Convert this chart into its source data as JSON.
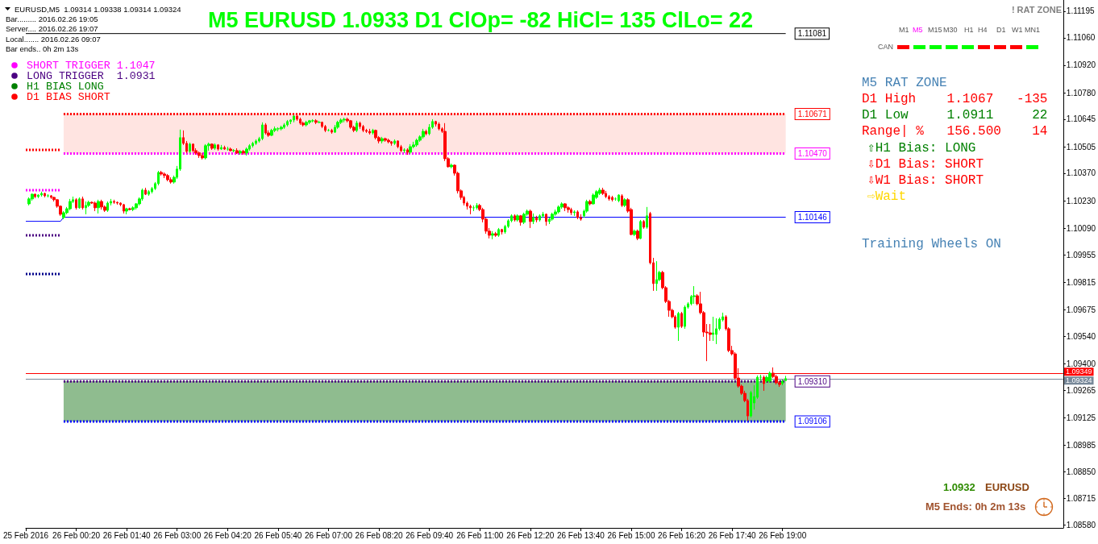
{
  "chart_data": {
    "type": "candlestick",
    "title": "M5 EURUSD 1.0933 D1 ClOp= -82 HiCl= 135 ClLo= 22",
    "x": [
      "2016-02-25T23:05",
      "2016-02-25T23:10",
      "2016-02-25T23:15",
      "2016-02-25T23:20",
      "2016-02-25T23:25",
      "2016-02-25T23:30",
      "2016-02-25T23:35",
      "2016-02-25T23:40",
      "2016-02-25T23:45",
      "2016-02-25T23:50",
      "2016-02-25T23:55",
      "2016-02-26T00:00",
      "2016-02-26T00:05",
      "2016-02-26T00:10",
      "2016-02-26T00:15",
      "2016-02-26T00:20",
      "2016-02-26T00:25",
      "2016-02-26T00:30",
      "2016-02-26T00:35",
      "2016-02-26T00:40",
      "2016-02-26T00:45",
      "2016-02-26T00:50",
      "2016-02-26T00:55",
      "2016-02-26T01:00",
      "2016-02-26T01:05",
      "2016-02-26T01:10",
      "2016-02-26T01:15",
      "2016-02-26T01:20",
      "2016-02-26T01:25",
      "2016-02-26T01:30",
      "2016-02-26T01:35",
      "2016-02-26T01:40",
      "2016-02-26T01:45",
      "2016-02-26T01:50",
      "2016-02-26T01:55",
      "2016-02-26T02:00",
      "2016-02-26T02:05",
      "2016-02-26T02:10",
      "2016-02-26T02:15",
      "2016-02-26T02:20",
      "2016-02-26T02:25",
      "2016-02-26T02:30",
      "2016-02-26T02:35",
      "2016-02-26T02:40",
      "2016-02-26T02:45",
      "2016-02-26T02:50",
      "2016-02-26T02:55",
      "2016-02-26T03:00",
      "2016-02-26T03:05",
      "2016-02-26T03:10",
      "2016-02-26T03:15",
      "2016-02-26T03:20",
      "2016-02-26T03:25",
      "2016-02-26T03:30",
      "2016-02-26T03:35",
      "2016-02-26T03:40",
      "2016-02-26T03:45",
      "2016-02-26T03:50",
      "2016-02-26T03:55",
      "2016-02-26T04:00",
      "2016-02-26T04:05",
      "2016-02-26T04:10",
      "2016-02-26T04:15",
      "2016-02-26T04:20",
      "2016-02-26T04:25",
      "2016-02-26T04:30",
      "2016-02-26T04:35",
      "2016-02-26T04:40",
      "2016-02-26T04:45",
      "2016-02-26T04:50",
      "2016-02-26T04:55",
      "2016-02-26T05:00",
      "2016-02-26T05:05",
      "2016-02-26T05:10",
      "2016-02-26T05:15",
      "2016-02-26T05:20",
      "2016-02-26T05:25",
      "2016-02-26T05:30",
      "2016-02-26T05:35",
      "2016-02-26T05:40",
      "2016-02-26T05:45",
      "2016-02-26T05:50",
      "2016-02-26T05:55",
      "2016-02-26T06:00",
      "2016-02-26T06:05",
      "2016-02-26T06:10",
      "2016-02-26T06:15",
      "2016-02-26T06:20",
      "2016-02-26T06:25",
      "2016-02-26T06:30",
      "2016-02-26T06:35",
      "2016-02-26T06:40",
      "2016-02-26T06:45",
      "2016-02-26T06:50",
      "2016-02-26T06:55",
      "2016-02-26T07:00",
      "2016-02-26T07:05",
      "2016-02-26T07:10",
      "2016-02-26T07:15",
      "2016-02-26T07:20",
      "2016-02-26T07:25",
      "2016-02-26T07:30",
      "2016-02-26T07:35",
      "2016-02-26T07:40",
      "2016-02-26T07:45",
      "2016-02-26T07:50",
      "2016-02-26T07:55",
      "2016-02-26T08:00",
      "2016-02-26T08:05",
      "2016-02-26T08:10",
      "2016-02-26T08:15",
      "2016-02-26T08:20",
      "2016-02-26T08:25",
      "2016-02-26T08:30",
      "2016-02-26T08:35",
      "2016-02-26T08:40",
      "2016-02-26T08:45",
      "2016-02-26T08:50",
      "2016-02-26T08:55",
      "2016-02-26T09:00",
      "2016-02-26T09:05",
      "2016-02-26T09:10",
      "2016-02-26T09:15",
      "2016-02-26T09:20",
      "2016-02-26T09:25",
      "2016-02-26T09:30",
      "2016-02-26T09:35",
      "2016-02-26T09:40",
      "2016-02-26T09:45",
      "2016-02-26T09:50",
      "2016-02-26T09:55",
      "2016-02-26T10:00",
      "2016-02-26T10:05",
      "2016-02-26T10:10",
      "2016-02-26T10:15",
      "2016-02-26T10:20",
      "2016-02-26T10:25",
      "2016-02-26T10:30",
      "2016-02-26T10:35",
      "2016-02-26T10:40",
      "2016-02-26T10:45",
      "2016-02-26T10:50",
      "2016-02-26T10:55",
      "2016-02-26T11:00",
      "2016-02-26T11:05",
      "2016-02-26T11:10",
      "2016-02-26T11:15",
      "2016-02-26T11:20",
      "2016-02-26T11:25",
      "2016-02-26T11:30",
      "2016-02-26T11:35",
      "2016-02-26T11:40",
      "2016-02-26T11:45",
      "2016-02-26T11:50",
      "2016-02-26T11:55",
      "2016-02-26T12:00",
      "2016-02-26T12:05",
      "2016-02-26T12:10",
      "2016-02-26T12:15",
      "2016-02-26T12:20",
      "2016-02-26T12:25",
      "2016-02-26T12:30",
      "2016-02-26T12:35",
      "2016-02-26T12:40",
      "2016-02-26T12:45",
      "2016-02-26T12:50",
      "2016-02-26T12:55",
      "2016-02-26T13:00",
      "2016-02-26T13:05",
      "2016-02-26T13:10",
      "2016-02-26T13:15",
      "2016-02-26T13:20",
      "2016-02-26T13:25",
      "2016-02-26T13:30",
      "2016-02-26T13:35",
      "2016-02-26T13:40",
      "2016-02-26T13:45",
      "2016-02-26T13:50",
      "2016-02-26T13:55",
      "2016-02-26T14:00",
      "2016-02-26T14:05",
      "2016-02-26T14:10",
      "2016-02-26T14:15",
      "2016-02-26T14:20",
      "2016-02-26T14:25",
      "2016-02-26T14:30",
      "2016-02-26T14:35",
      "2016-02-26T14:40",
      "2016-02-26T14:45",
      "2016-02-26T14:50",
      "2016-02-26T14:55",
      "2016-02-26T15:00",
      "2016-02-26T15:05",
      "2016-02-26T15:10",
      "2016-02-26T15:15",
      "2016-02-26T15:20",
      "2016-02-26T15:25",
      "2016-02-26T15:30",
      "2016-02-26T15:35",
      "2016-02-26T15:40",
      "2016-02-26T15:45",
      "2016-02-26T15:50",
      "2016-02-26T15:55",
      "2016-02-26T16:00",
      "2016-02-26T16:05",
      "2016-02-26T16:10",
      "2016-02-26T16:15",
      "2016-02-26T16:20",
      "2016-02-26T16:25",
      "2016-02-26T16:30",
      "2016-02-26T16:35",
      "2016-02-26T16:40",
      "2016-02-26T16:45",
      "2016-02-26T16:50",
      "2016-02-26T16:55",
      "2016-02-26T17:00",
      "2016-02-26T17:05",
      "2016-02-26T17:10",
      "2016-02-26T17:15",
      "2016-02-26T17:20",
      "2016-02-26T17:25",
      "2016-02-26T17:30",
      "2016-02-26T17:35",
      "2016-02-26T17:40",
      "2016-02-26T17:45",
      "2016-02-26T17:50",
      "2016-02-26T17:55",
      "2016-02-26T18:00",
      "2016-02-26T18:05",
      "2016-02-26T18:10",
      "2016-02-26T18:15",
      "2016-02-26T18:20",
      "2016-02-26T18:25",
      "2016-02-26T18:30",
      "2016-02-26T18:35",
      "2016-02-26T18:40",
      "2016-02-26T18:45",
      "2016-02-26T18:50",
      "2016-02-26T18:55",
      "2016-02-26T19:00",
      "2016-02-26T19:05"
    ],
    "ohlc": [
      [
        1.10214,
        1.10247,
        1.10206,
        1.10239
      ],
      [
        1.10239,
        1.10267,
        1.1023,
        1.10263
      ],
      [
        1.10263,
        1.10267,
        1.10243,
        1.10251
      ],
      [
        1.10251,
        1.10263,
        1.10243,
        1.10259
      ],
      [
        1.10259,
        1.10276,
        1.10251,
        1.10267
      ],
      [
        1.10267,
        1.10271,
        1.10247,
        1.10255
      ],
      [
        1.10255,
        1.10263,
        1.10247,
        1.10255
      ],
      [
        1.10255,
        1.10259,
        1.10239,
        1.10247
      ],
      [
        1.10247,
        1.10251,
        1.10226,
        1.10235
      ],
      [
        1.10235,
        1.10239,
        1.10194,
        1.10202
      ],
      [
        1.10202,
        1.10206,
        1.10153,
        1.10161
      ],
      [
        1.10144,
        1.10177,
        1.10136,
        1.10169
      ],
      [
        1.10169,
        1.10198,
        1.10161,
        1.10189
      ],
      [
        1.10189,
        1.10239,
        1.10181,
        1.10226
      ],
      [
        1.10226,
        1.10251,
        1.10218,
        1.10235
      ],
      [
        1.10235,
        1.10243,
        1.10185,
        1.10194
      ],
      [
        1.10194,
        1.10247,
        1.10189,
        1.10239
      ],
      [
        1.10239,
        1.10251,
        1.10185,
        1.10194
      ],
      [
        1.10194,
        1.10226,
        1.10161,
        1.10206
      ],
      [
        1.10206,
        1.1023,
        1.10198,
        1.10222
      ],
      [
        1.10222,
        1.10226,
        1.10214,
        1.10218
      ],
      [
        1.10218,
        1.10226,
        1.10177,
        1.10194
      ],
      [
        1.10194,
        1.10235,
        1.10165,
        1.10226
      ],
      [
        1.10226,
        1.10235,
        1.10185,
        1.10198
      ],
      [
        1.10198,
        1.10206,
        1.10173,
        1.10181
      ],
      [
        1.10181,
        1.10226,
        1.10173,
        1.10218
      ],
      [
        1.10218,
        1.10239,
        1.10206,
        1.10226
      ],
      [
        1.10226,
        1.10235,
        1.10214,
        1.10222
      ],
      [
        1.10222,
        1.10226,
        1.1021,
        1.10218
      ],
      [
        1.10218,
        1.10222,
        1.10202,
        1.1021
      ],
      [
        1.1021,
        1.10214,
        1.10165,
        1.10177
      ],
      [
        1.10177,
        1.10194,
        1.10161,
        1.10189
      ],
      [
        1.10189,
        1.10194,
        1.10181,
        1.10185
      ],
      [
        1.10185,
        1.10202,
        1.10177,
        1.10194
      ],
      [
        1.10194,
        1.10218,
        1.10185,
        1.10214
      ],
      [
        1.10214,
        1.10247,
        1.10206,
        1.10239
      ],
      [
        1.10239,
        1.10292,
        1.1023,
        1.10284
      ],
      [
        1.10284,
        1.10296,
        1.10259,
        1.10263
      ],
      [
        1.10263,
        1.10284,
        1.10255,
        1.10276
      ],
      [
        1.10276,
        1.103,
        1.10267,
        1.10292
      ],
      [
        1.10292,
        1.10325,
        1.10284,
        1.10317
      ],
      [
        1.10317,
        1.10382,
        1.10308,
        1.10374
      ],
      [
        1.10374,
        1.10382,
        1.10358,
        1.10366
      ],
      [
        1.10366,
        1.10374,
        1.10345,
        1.10358
      ],
      [
        1.10358,
        1.10366,
        1.10329,
        1.10337
      ],
      [
        1.10337,
        1.10349,
        1.10317,
        1.10325
      ],
      [
        1.10325,
        1.10358,
        1.10317,
        1.10349
      ],
      [
        1.10349,
        1.10407,
        1.10341,
        1.10391
      ],
      [
        1.10391,
        1.10592,
        1.10382,
        1.10551
      ],
      [
        1.10551,
        1.10588,
        1.10514,
        1.10522
      ],
      [
        1.10522,
        1.10534,
        1.10473,
        1.10481
      ],
      [
        1.10481,
        1.10526,
        1.10473,
        1.10518
      ],
      [
        1.10518,
        1.10522,
        1.10477,
        1.10485
      ],
      [
        1.10485,
        1.10497,
        1.10464,
        1.10473
      ],
      [
        1.10473,
        1.10481,
        1.10448,
        1.1046
      ],
      [
        1.1046,
        1.10473,
        1.1044,
        1.10448
      ],
      [
        1.10448,
        1.10518,
        1.1044,
        1.1051
      ],
      [
        1.1051,
        1.10526,
        1.10485,
        1.10518
      ],
      [
        1.10518,
        1.10522,
        1.10489,
        1.10497
      ],
      [
        1.10497,
        1.10522,
        1.10489,
        1.10514
      ],
      [
        1.10514,
        1.10518,
        1.10485,
        1.10493
      ],
      [
        1.10493,
        1.10514,
        1.10489,
        1.10501
      ],
      [
        1.10501,
        1.1051,
        1.10489,
        1.10493
      ],
      [
        1.10493,
        1.10505,
        1.10485,
        1.10493
      ],
      [
        1.10493,
        1.10501,
        1.10481,
        1.10485
      ],
      [
        1.10485,
        1.10493,
        1.10477,
        1.10485
      ],
      [
        1.10485,
        1.10497,
        1.10468,
        1.10473
      ],
      [
        1.10473,
        1.10489,
        1.10464,
        1.10481
      ],
      [
        1.10481,
        1.10489,
        1.10464,
        1.10473
      ],
      [
        1.10473,
        1.10501,
        1.1046,
        1.10493
      ],
      [
        1.10493,
        1.10518,
        1.10485,
        1.1051
      ],
      [
        1.1051,
        1.1053,
        1.10501,
        1.10522
      ],
      [
        1.10522,
        1.10542,
        1.10514,
        1.10534
      ],
      [
        1.10534,
        1.10555,
        1.10526,
        1.10546
      ],
      [
        1.10546,
        1.10629,
        1.10538,
        1.10616
      ],
      [
        1.10616,
        1.10625,
        1.10567,
        1.10575
      ],
      [
        1.10575,
        1.10588,
        1.10555,
        1.10563
      ],
      [
        1.10563,
        1.10596,
        1.10559,
        1.10588
      ],
      [
        1.10588,
        1.10608,
        1.10579,
        1.10596
      ],
      [
        1.10596,
        1.10604,
        1.10583,
        1.10596
      ],
      [
        1.10596,
        1.10612,
        1.10588,
        1.10604
      ],
      [
        1.10604,
        1.10625,
        1.10596,
        1.10616
      ],
      [
        1.10616,
        1.10641,
        1.10608,
        1.10633
      ],
      [
        1.10633,
        1.10645,
        1.1062,
        1.10641
      ],
      [
        1.10641,
        1.10665,
        1.10629,
        1.10661
      ],
      [
        1.10661,
        1.1067,
        1.10637,
        1.10645
      ],
      [
        1.10645,
        1.10653,
        1.10616,
        1.10625
      ],
      [
        1.10625,
        1.10633,
        1.10608,
        1.10616
      ],
      [
        1.10616,
        1.10637,
        1.10608,
        1.10629
      ],
      [
        1.10629,
        1.10641,
        1.1062,
        1.10637
      ],
      [
        1.10637,
        1.10645,
        1.10629,
        1.10637
      ],
      [
        1.10637,
        1.10645,
        1.1062,
        1.10629
      ],
      [
        1.10629,
        1.10637,
        1.10625,
        1.10629
      ],
      [
        1.10629,
        1.10633,
        1.106,
        1.10608
      ],
      [
        1.10608,
        1.10616,
        1.10579,
        1.10588
      ],
      [
        1.10588,
        1.10596,
        1.10583,
        1.10588
      ],
      [
        1.10588,
        1.10596,
        1.10571,
        1.10579
      ],
      [
        1.10579,
        1.10616,
        1.10575,
        1.10604
      ],
      [
        1.10604,
        1.10637,
        1.10596,
        1.10629
      ],
      [
        1.10629,
        1.10649,
        1.1062,
        1.10641
      ],
      [
        1.10641,
        1.10653,
        1.10629,
        1.10645
      ],
      [
        1.10645,
        1.10653,
        1.10629,
        1.10637
      ],
      [
        1.10637,
        1.10641,
        1.10596,
        1.10604
      ],
      [
        1.10604,
        1.10612,
        1.10579,
        1.10588
      ],
      [
        1.10588,
        1.10637,
        1.10579,
        1.10625
      ],
      [
        1.10625,
        1.10633,
        1.10596,
        1.10608
      ],
      [
        1.10608,
        1.10616,
        1.10579,
        1.10588
      ],
      [
        1.10588,
        1.10596,
        1.10575,
        1.10583
      ],
      [
        1.10583,
        1.10596,
        1.10567,
        1.10575
      ],
      [
        1.10575,
        1.10596,
        1.10567,
        1.10588
      ],
      [
        1.10588,
        1.10592,
        1.10542,
        1.10551
      ],
      [
        1.10551,
        1.10559,
        1.10522,
        1.10534
      ],
      [
        1.10534,
        1.10555,
        1.10522,
        1.10546
      ],
      [
        1.10546,
        1.10551,
        1.1053,
        1.10538
      ],
      [
        1.10538,
        1.10546,
        1.10522,
        1.1053
      ],
      [
        1.1053,
        1.10534,
        1.1051,
        1.10522
      ],
      [
        1.10522,
        1.10542,
        1.10514,
        1.10534
      ],
      [
        1.10534,
        1.10538,
        1.10497,
        1.10505
      ],
      [
        1.10505,
        1.10514,
        1.10477,
        1.10485
      ],
      [
        1.10485,
        1.10497,
        1.10473,
        1.10489
      ],
      [
        1.10489,
        1.10497,
        1.10464,
        1.10477
      ],
      [
        1.10477,
        1.10518,
        1.10468,
        1.10505
      ],
      [
        1.10505,
        1.1053,
        1.10497,
        1.10514
      ],
      [
        1.10514,
        1.10546,
        1.10505,
        1.10538
      ],
      [
        1.10538,
        1.10563,
        1.1053,
        1.10555
      ],
      [
        1.10555,
        1.10596,
        1.10546,
        1.10583
      ],
      [
        1.10583,
        1.10592,
        1.10563,
        1.10571
      ],
      [
        1.10571,
        1.1062,
        1.10563,
        1.10604
      ],
      [
        1.10604,
        1.10645,
        1.10596,
        1.10633
      ],
      [
        1.10633,
        1.10637,
        1.10608,
        1.1062
      ],
      [
        1.1062,
        1.10629,
        1.10588,
        1.10596
      ],
      [
        1.10596,
        1.10604,
        1.10575,
        1.10583
      ],
      [
        1.10583,
        1.10625,
        1.10432,
        1.10444
      ],
      [
        1.10444,
        1.10452,
        1.10399,
        1.10403
      ],
      [
        1.10403,
        1.10419,
        1.10395,
        1.10411
      ],
      [
        1.10411,
        1.10415,
        1.10358,
        1.1037
      ],
      [
        1.1037,
        1.10378,
        1.10267,
        1.1028
      ],
      [
        1.1028,
        1.10288,
        1.10235,
        1.10247
      ],
      [
        1.10247,
        1.10255,
        1.10206,
        1.10218
      ],
      [
        1.10218,
        1.10226,
        1.10185,
        1.10202
      ],
      [
        1.10202,
        1.1021,
        1.10161,
        1.10194
      ],
      [
        1.10194,
        1.10206,
        1.10177,
        1.10194
      ],
      [
        1.10194,
        1.10218,
        1.10185,
        1.10206
      ],
      [
        1.10206,
        1.10214,
        1.10177,
        1.10185
      ],
      [
        1.10185,
        1.10194,
        1.1012,
        1.10136
      ],
      [
        1.10136,
        1.10144,
        1.10062,
        1.10075
      ],
      [
        1.10075,
        1.10091,
        1.10038,
        1.10054
      ],
      [
        1.10054,
        1.10075,
        1.10034,
        1.10062
      ],
      [
        1.10062,
        1.10071,
        1.10046,
        1.10054
      ],
      [
        1.10054,
        1.10091,
        1.10046,
        1.10083
      ],
      [
        1.10083,
        1.10087,
        1.10058,
        1.10071
      ],
      [
        1.10071,
        1.10107,
        1.10062,
        1.10099
      ],
      [
        1.10099,
        1.10136,
        1.10091,
        1.10128
      ],
      [
        1.10128,
        1.10161,
        1.1012,
        1.10153
      ],
      [
        1.10153,
        1.10161,
        1.10124,
        1.10132
      ],
      [
        1.10132,
        1.10161,
        1.10124,
        1.10153
      ],
      [
        1.10153,
        1.10157,
        1.10103,
        1.1012
      ],
      [
        1.1012,
        1.10169,
        1.10111,
        1.10161
      ],
      [
        1.10161,
        1.10185,
        1.10153,
        1.10177
      ],
      [
        1.10177,
        1.10185,
        1.10091,
        1.10124
      ],
      [
        1.10124,
        1.10165,
        1.10111,
        1.10144
      ],
      [
        1.10144,
        1.10153,
        1.1012,
        1.10132
      ],
      [
        1.10132,
        1.10161,
        1.10124,
        1.10153
      ],
      [
        1.10153,
        1.10173,
        1.10144,
        1.10161
      ],
      [
        1.10161,
        1.10165,
        1.10103,
        1.10124
      ],
      [
        1.10124,
        1.10144,
        1.10111,
        1.10136
      ],
      [
        1.10136,
        1.10169,
        1.10128,
        1.10161
      ],
      [
        1.10161,
        1.10185,
        1.10153,
        1.10173
      ],
      [
        1.10173,
        1.10206,
        1.10165,
        1.10198
      ],
      [
        1.10198,
        1.10222,
        1.10189,
        1.10214
      ],
      [
        1.10214,
        1.10218,
        1.10177,
        1.10194
      ],
      [
        1.10194,
        1.10202,
        1.10169,
        1.10185
      ],
      [
        1.10185,
        1.10194,
        1.10157,
        1.10169
      ],
      [
        1.10169,
        1.10181,
        1.10153,
        1.10173
      ],
      [
        1.10173,
        1.10181,
        1.10136,
        1.10144
      ],
      [
        1.10144,
        1.10161,
        1.10128,
        1.10136
      ],
      [
        1.10153,
        1.10185,
        1.10144,
        1.10177
      ],
      [
        1.10177,
        1.10235,
        1.10169,
        1.10226
      ],
      [
        1.10226,
        1.10235,
        1.10206,
        1.10214
      ],
      [
        1.10214,
        1.10267,
        1.1021,
        1.10259
      ],
      [
        1.10247,
        1.10284,
        1.10239,
        1.10276
      ],
      [
        1.10267,
        1.10296,
        1.10259,
        1.10284
      ],
      [
        1.10284,
        1.10296,
        1.10259,
        1.10267
      ],
      [
        1.10267,
        1.1028,
        1.10243,
        1.10251
      ],
      [
        1.10251,
        1.10259,
        1.1023,
        1.10239
      ],
      [
        1.10247,
        1.10255,
        1.10226,
        1.10235
      ],
      [
        1.10239,
        1.10247,
        1.1023,
        1.10239
      ],
      [
        1.1023,
        1.10263,
        1.10222,
        1.10259
      ],
      [
        1.10255,
        1.10263,
        1.10198,
        1.10206
      ],
      [
        1.10206,
        1.10243,
        1.10198,
        1.10235
      ],
      [
        1.10235,
        1.10243,
        1.10169,
        1.10177
      ],
      [
        1.10185,
        1.10194,
        1.10054,
        1.10058
      ],
      [
        1.10058,
        1.10083,
        1.1005,
        1.10075
      ],
      [
        1.10075,
        1.10083,
        1.10029,
        1.10038
      ],
      [
        1.10038,
        1.10132,
        1.10034,
        1.10124
      ],
      [
        1.10124,
        1.10132,
        1.10087,
        1.10095
      ],
      [
        1.10095,
        1.10198,
        1.10087,
        1.10153
      ],
      [
        1.10165,
        1.10173,
        1.09906,
        1.09914
      ],
      [
        1.09914,
        1.09939,
        1.09771,
        1.09808
      ],
      [
        1.09808,
        1.09922,
        1.09771,
        1.09828
      ],
      [
        1.09828,
        1.09873,
        1.0982,
        1.09865
      ],
      [
        1.09865,
        1.09873,
        1.09779,
        1.09787
      ],
      [
        1.09787,
        1.09795,
        1.09709,
        1.09717
      ],
      [
        1.09717,
        1.09725,
        1.09639,
        1.09672
      ],
      [
        1.09672,
        1.0968,
        1.09631,
        1.09639
      ],
      [
        1.09639,
        1.09647,
        1.09578,
        1.09586
      ],
      [
        1.09586,
        1.09664,
        1.09516,
        1.09656
      ],
      [
        1.09656,
        1.09664,
        1.09582,
        1.0959
      ],
      [
        1.0959,
        1.09697,
        1.09578,
        1.09688
      ],
      [
        1.09688,
        1.09713,
        1.0968,
        1.09705
      ],
      [
        1.09705,
        1.0975,
        1.09697,
        1.09742
      ],
      [
        1.09742,
        1.09795,
        1.09705,
        1.09746
      ],
      [
        1.09746,
        1.09754,
        1.09697,
        1.09705
      ],
      [
        1.09705,
        1.09766,
        1.09652,
        1.0966
      ],
      [
        1.0966,
        1.09668,
        1.09537,
        1.09561
      ],
      [
        1.09561,
        1.09602,
        1.09413,
        1.09557
      ],
      [
        1.09557,
        1.09602,
        1.09516,
        1.09549
      ],
      [
        1.09549,
        1.09639,
        1.09516,
        1.09557
      ],
      [
        1.09549,
        1.09631,
        1.095,
        1.09578
      ],
      [
        1.09578,
        1.09635,
        1.09569,
        1.09627
      ],
      [
        1.09623,
        1.0966,
        1.09615,
        1.09639
      ],
      [
        1.09639,
        1.09647,
        1.09569,
        1.09578
      ],
      [
        1.09578,
        1.09586,
        1.09459,
        1.09467
      ],
      [
        1.09467,
        1.09491,
        1.09442,
        1.0945
      ],
      [
        1.0945,
        1.09459,
        1.09319,
        1.09327
      ],
      [
        1.09327,
        1.09377,
        1.09278,
        1.09286
      ],
      [
        1.09286,
        1.09294,
        1.09241,
        1.09249
      ],
      [
        1.09249,
        1.09262,
        1.09204,
        1.09212
      ],
      [
        1.09212,
        1.09221,
        1.0911,
        1.09134
      ],
      [
        1.09134,
        1.09262,
        1.09126,
        1.09253
      ],
      [
        1.092,
        1.0929,
        1.09167,
        1.09233
      ],
      [
        1.09229,
        1.0934,
        1.09221,
        1.09331
      ],
      [
        1.09331,
        1.09344,
        1.09311,
        1.09331
      ],
      [
        1.09331,
        1.0934,
        1.09262,
        1.09299
      ],
      [
        1.09311,
        1.0934,
        1.09303,
        1.09331
      ],
      [
        1.09311,
        1.0936,
        1.09303,
        1.09352
      ],
      [
        1.09352,
        1.09381,
        1.09327,
        1.09335
      ],
      [
        1.09335,
        1.09344,
        1.09294,
        1.09303
      ],
      [
        1.09303,
        1.09311,
        1.09282,
        1.09294
      ],
      [
        1.09299,
        1.09319,
        1.0929,
        1.09311
      ],
      [
        1.09314,
        1.09338,
        1.09314,
        1.09324
      ]
    ],
    "xlim": [
      "2016-02-25T23:00",
      "2016-02-27T02:25"
    ],
    "xticks": [
      {
        "value": "2016-02-25T23:00",
        "label": "25 Feb 2016"
      },
      {
        "value": "2016-02-26T00:20",
        "label": "26 Feb 00:20"
      },
      {
        "value": "2016-02-26T01:40",
        "label": "26 Feb 01:40"
      },
      {
        "value": "2016-02-26T03:00",
        "label": "26 Feb 03:00"
      },
      {
        "value": "2016-02-26T04:20",
        "label": "26 Feb 04:20"
      },
      {
        "value": "2016-02-26T05:40",
        "label": "26 Feb 05:40"
      },
      {
        "value": "2016-02-26T07:00",
        "label": "26 Feb 07:00"
      },
      {
        "value": "2016-02-26T08:20",
        "label": "26 Feb 08:20"
      },
      {
        "value": "2016-02-26T09:40",
        "label": "26 Feb 09:40"
      },
      {
        "value": "2016-02-26T11:00",
        "label": "26 Feb 11:00"
      },
      {
        "value": "2016-02-26T12:20",
        "label": "26 Feb 12:20"
      },
      {
        "value": "2016-02-26T13:40",
        "label": "26 Feb 13:40"
      },
      {
        "value": "2016-02-26T15:00",
        "label": "26 Feb 15:00"
      },
      {
        "value": "2016-02-26T16:20",
        "label": "26 Feb 16:20"
      },
      {
        "value": "2016-02-26T17:40",
        "label": "26 Feb 17:40"
      },
      {
        "value": "2016-02-26T19:00",
        "label": "26 Feb 19:00"
      }
    ],
    "ylim": [
      1.08564,
      1.11252
    ],
    "yticks": [
      {
        "value": 1.0858,
        "label": "1.08580"
      },
      1.08715,
      {
        "value": 1.0885,
        "label": "1.08850"
      },
      1.08985,
      1.09125,
      1.09265,
      {
        "value": 1.094,
        "label": "1.09400"
      },
      {
        "value": 1.0954,
        "label": "1.09540"
      },
      1.09675,
      1.09815,
      1.09955,
      {
        "value": 1.1009,
        "label": "1.10090"
      },
      {
        "value": 1.1023,
        "label": "1.10230"
      },
      {
        "value": 1.1037,
        "label": "1.10370"
      },
      1.10505,
      1.10645,
      {
        "value": 1.1078,
        "label": "1.10780"
      },
      {
        "value": 1.1092,
        "label": "1.10920"
      },
      {
        "value": 1.1106,
        "label": "1.11060"
      },
      1.11195
    ],
    "series": [
      {
        "type": "line",
        "x": [
          "2016-02-26T00:00",
          "2016-02-26T19:05"
        ],
        "values": [
          1.10671,
          1.10671
        ],
        "lower": [
          1.1047,
          1.1047
        ],
        "upper": [
          1.10671,
          1.10671
        ],
        "color": "#ffe4e1"
      },
      {
        "type": "line",
        "x": [
          "2016-02-26T00:00",
          "2016-02-26T19:05"
        ],
        "values": [
          1.0931,
          1.0931
        ],
        "lower": [
          1.09106,
          1.09106
        ],
        "upper": [
          1.0931,
          1.0931
        ],
        "color": "#8fbc8f"
      },
      {
        "type": "line",
        "x": [
          "2016-02-25T23:00",
          "2016-02-26T19:05"
        ],
        "values": [
          1.11081,
          1.11081
        ],
        "color": "#000000",
        "value_labels": [
          null,
          "1.11081"
        ]
      },
      {
        "type": "line",
        "x": [
          "2016-02-26T00:00",
          "2016-02-26T19:05"
        ],
        "values": [
          1.10671,
          1.10671
        ],
        "color": "#ff0000",
        "line_style": "dotted",
        "value_labels": [
          null,
          "1.10671"
        ]
      },
      {
        "type": "line",
        "x": [
          "2016-02-26T00:00",
          "2016-02-26T19:05"
        ],
        "values": [
          1.1047,
          1.1047
        ],
        "color": "#ff00ff",
        "line_style": "dotted",
        "value_labels": [
          null,
          "1.10470"
        ]
      },
      {
        "type": "line",
        "x": [
          "2016-02-25T23:00",
          "2016-02-25T23:55",
          "2016-02-26T00:00",
          "2016-02-26T19:05"
        ],
        "values": [
          1.10125,
          1.10125,
          1.10146,
          1.10146
        ],
        "color": "#0000ff",
        "value_labels": [
          null,
          null,
          null,
          "1.10146"
        ]
      },
      {
        "type": "line",
        "x": [
          "2016-02-26T00:00",
          "2016-02-26T19:05"
        ],
        "values": [
          1.0931,
          1.0931
        ],
        "color": "#4b0082",
        "line_style": "dotted",
        "value_labels": [
          null,
          "1.09310"
        ]
      },
      {
        "type": "line",
        "x": [
          "2016-02-26T00:00",
          "2016-02-26T19:05"
        ],
        "values": [
          1.09106,
          1.09106
        ],
        "color": "#0000ff",
        "line_style": "dotted",
        "value_labels": [
          null,
          "1.09106"
        ]
      },
      {
        "type": "line",
        "x": [
          "2016-02-25T23:00",
          "2016-02-25T23:55"
        ],
        "values": [
          1.10489,
          1.10489
        ],
        "color": "#ff0000",
        "line_style": "dotted"
      },
      {
        "type": "line",
        "x": [
          "2016-02-25T23:00",
          "2016-02-25T23:55"
        ],
        "values": [
          1.10284,
          1.10284
        ],
        "color": "#ff00ff",
        "line_style": "dotted"
      },
      {
        "type": "line",
        "x": [
          "2016-02-25T23:00",
          "2016-02-25T23:55"
        ],
        "values": [
          1.10054,
          1.10054
        ],
        "color": "#4b0082",
        "line_style": "dotted"
      },
      {
        "type": "line",
        "x": [
          "2016-02-25T23:00",
          "2016-02-25T23:55"
        ],
        "values": [
          1.09857,
          1.09857
        ],
        "color": "#00008b",
        "line_style": "dotted"
      }
    ],
    "ref_lines": [
      {
        "axis": "y",
        "value": 1.09349,
        "label": "1.09349",
        "color": "#ff0000"
      },
      {
        "axis": "y",
        "value": 1.09324,
        "label": "1.09324",
        "color": "#778899"
      }
    ],
    "annotations": [
      "EURUSD,M5  1.09314 1.09338 1.09314 1.09324",
      "Bar......... 2016.02.26 19:05",
      "Server.... 2016.02.26 19:07",
      "Local....... 2016.02.26 09:07",
      "Bar ends.. 0h 2m 13s",
      "SHORT TRIGGER 1.1047",
      "LONG TRIGGER  1.0931",
      "H1 BIAS LONG",
      "D1 BIAS SHORT",
      "! RAT ZONE",
      "M1",
      "M5",
      "M15",
      "M30",
      "H1",
      "H4",
      "D1",
      "W1",
      "MN1",
      "CAN",
      "M5 RAT ZONE",
      "D1 High    1.1067   -135",
      "D1 Low     1.0911     22",
      "Range| %   156.500    14",
      "⇧H1 Bias: LONG",
      "⇩D1 Bias: SHORT",
      "⇩W1 Bias: SHORT",
      "⇨Wait",
      "Training Wheels ON",
      "1.0932",
      "EURUSD",
      "M5 Ends: 0h 2m 13s"
    ]
  }
}
